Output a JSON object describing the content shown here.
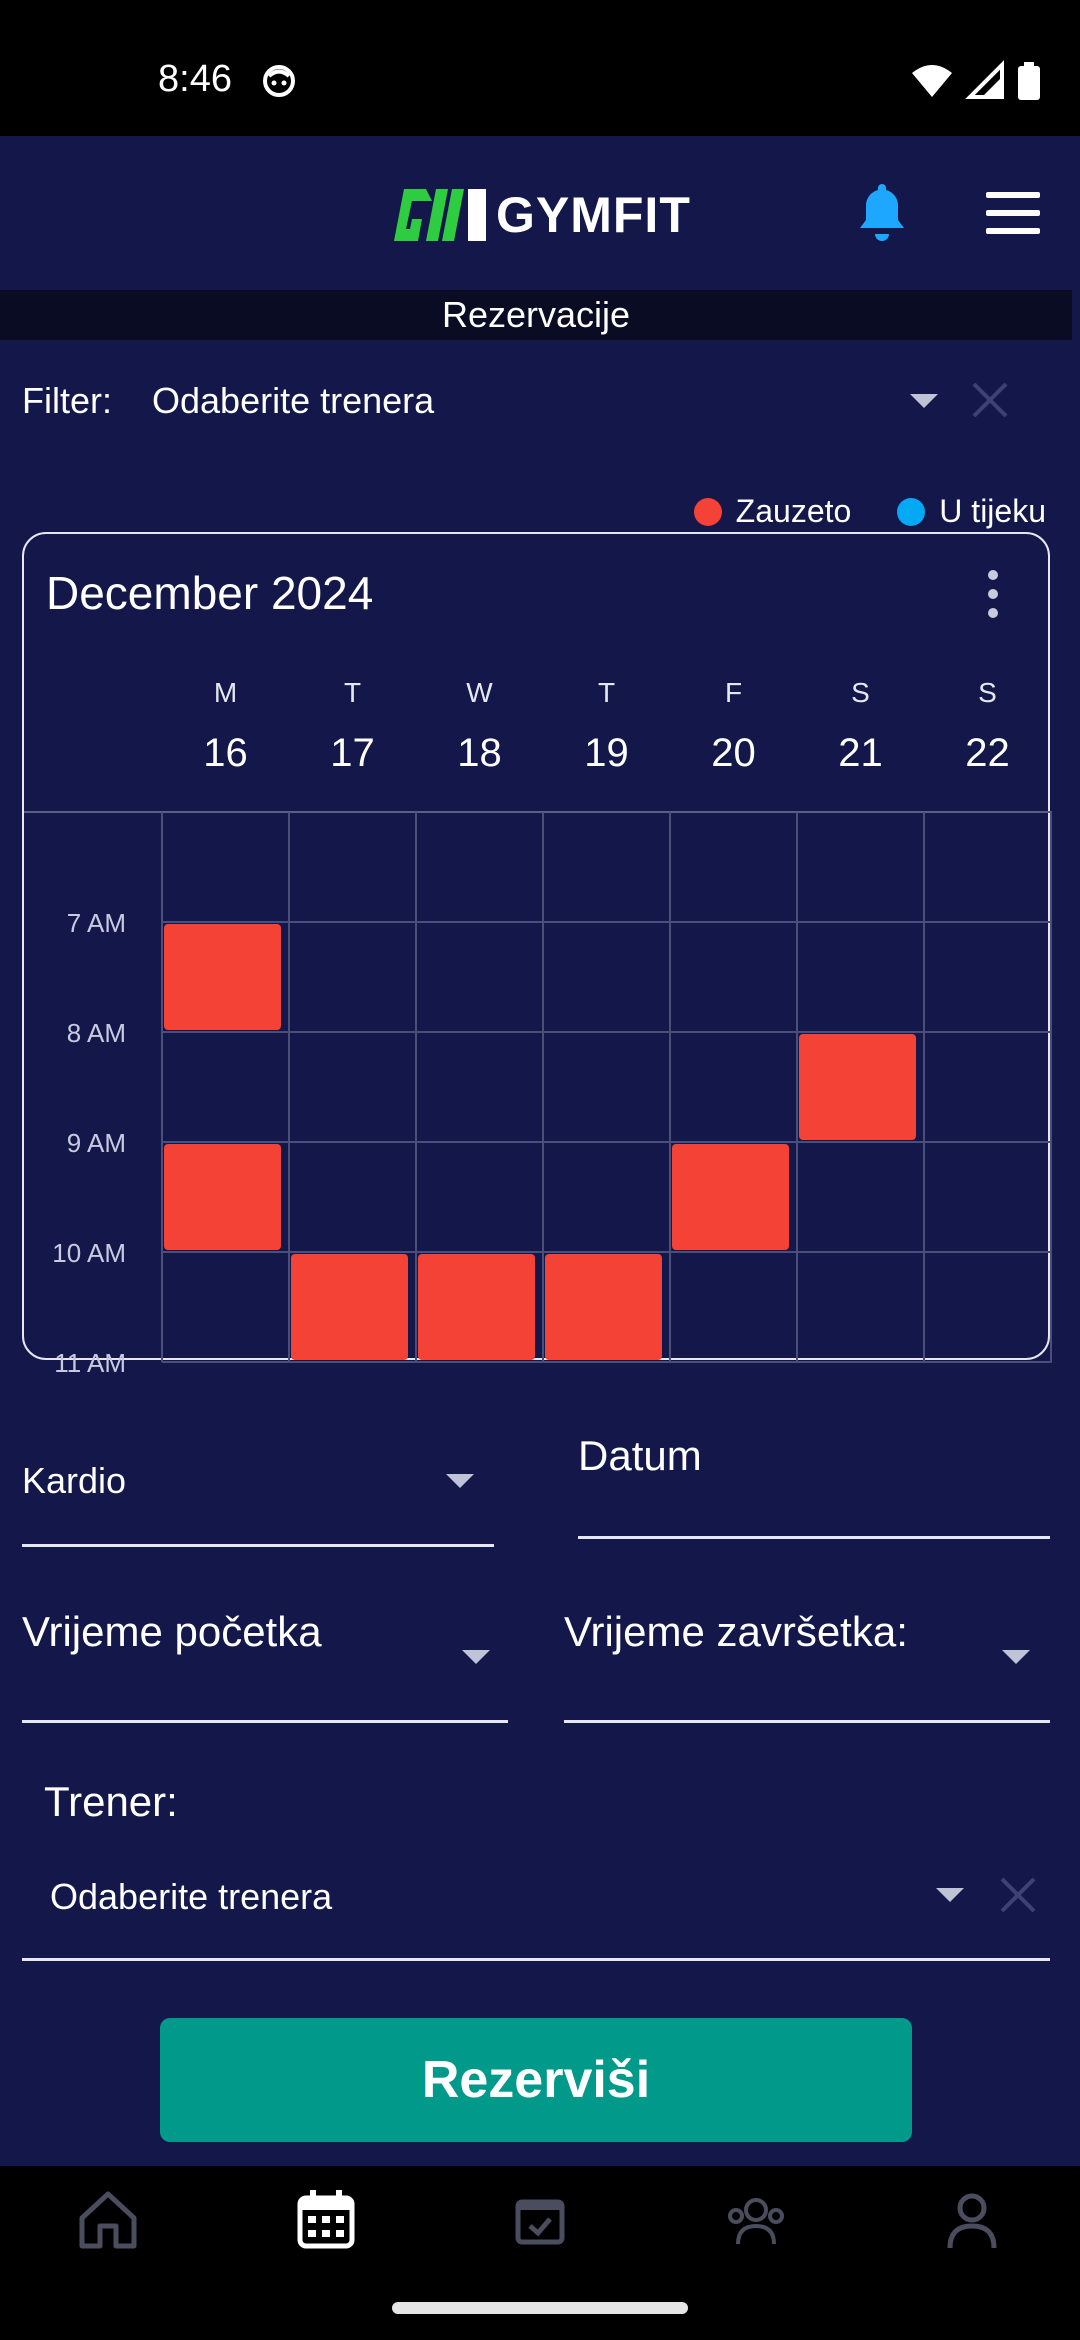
{
  "status_bar": {
    "time": "8:46"
  },
  "header": {
    "logo_text": "GYMFIT",
    "page_title": "Rezervacije"
  },
  "filter": {
    "label": "Filter:",
    "value": "Odaberite trenera"
  },
  "legend": [
    {
      "label": "Zauzeto",
      "color": "#f44336"
    },
    {
      "label": "U tijeku",
      "color": "#03a9f4"
    }
  ],
  "calendar": {
    "month_title": "December 2024",
    "days": [
      {
        "letter": "M",
        "date": "16"
      },
      {
        "letter": "T",
        "date": "17"
      },
      {
        "letter": "W",
        "date": "18"
      },
      {
        "letter": "T",
        "date": "19"
      },
      {
        "letter": "F",
        "date": "20"
      },
      {
        "letter": "S",
        "date": "21"
      },
      {
        "letter": "S",
        "date": "22"
      }
    ],
    "hours": [
      "7 AM",
      "8 AM",
      "9 AM",
      "10 AM",
      "11 AM"
    ],
    "booked_color": "#f44336",
    "booked_slots": [
      {
        "day": 0,
        "hour": "7 AM"
      },
      {
        "day": 0,
        "hour": "9 AM"
      },
      {
        "day": 1,
        "hour": "10 AM"
      },
      {
        "day": 2,
        "hour": "10 AM"
      },
      {
        "day": 3,
        "hour": "10 AM"
      },
      {
        "day": 4,
        "hour": "9 AM"
      },
      {
        "day": 5,
        "hour": "8 AM"
      }
    ]
  },
  "form": {
    "activity_value": "Kardio",
    "date_label": "Datum",
    "start_time_label": "Vrijeme početka",
    "end_time_label": "Vrijeme završetka:",
    "trainer_label": "Trener:",
    "trainer_value": "Odaberite trenera",
    "submit_label": "Rezerviši"
  },
  "bottom_nav": [
    {
      "icon": "home-icon"
    },
    {
      "icon": "calendar-grid-icon",
      "active": true
    },
    {
      "icon": "calendar-check-icon"
    },
    {
      "icon": "group-icon"
    },
    {
      "icon": "profile-icon"
    }
  ]
}
